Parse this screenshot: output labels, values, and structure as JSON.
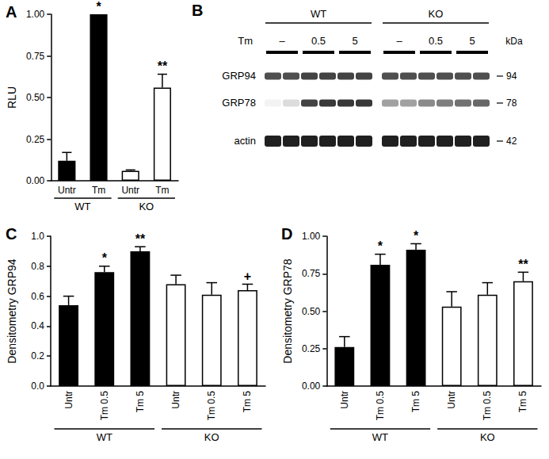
{
  "chart_data": [
    {
      "type": "bar",
      "title": "A",
      "categories": [
        "Untr",
        "Tm",
        "Untr",
        "Tm"
      ],
      "values": [
        0.12,
        1.0,
        0.06,
        0.56
      ],
      "errors": [
        0.05,
        null,
        0.005,
        0.08
      ],
      "colors": [
        "#000000",
        "#000000",
        "#ffffff",
        "#ffffff"
      ],
      "annotations": [
        null,
        "*",
        null,
        "**"
      ],
      "groups": [
        {
          "label": "WT",
          "size": 2
        },
        {
          "label": "KO",
          "size": 2
        }
      ],
      "y_label": "RLU",
      "ylim": [
        0,
        1
      ],
      "yticks": [
        {
          "value": 0,
          "label": "0.00"
        },
        0.25,
        {
          "value": 0.5,
          "label": "0.50"
        },
        0.75,
        {
          "value": 1,
          "label": "1.00"
        }
      ],
      "grid": false
    },
    {
      "type": "bar",
      "title": "C",
      "categories": [
        "Untr",
        "Tm 0.5",
        "Tm 5",
        "Untr",
        "Tm 0.5",
        "Tm 5"
      ],
      "values": [
        0.54,
        0.76,
        0.9,
        0.68,
        0.61,
        0.64
      ],
      "errors": [
        0.06,
        0.04,
        0.03,
        0.06,
        0.08,
        0.04
      ],
      "colors": [
        "#000000",
        "#000000",
        "#000000",
        "#ffffff",
        "#ffffff",
        "#ffffff"
      ],
      "annotations": [
        null,
        "*",
        "**",
        null,
        null,
        "+"
      ],
      "groups": [
        {
          "label": "WT",
          "size": 3
        },
        {
          "label": "KO",
          "size": 3
        }
      ],
      "y_label": "Densitometry GRP94",
      "ylim": [
        0,
        1
      ],
      "yticks": [
        {
          "value": 0,
          "label": "0.0"
        },
        0.2,
        0.4,
        0.6,
        0.8,
        {
          "value": 1,
          "label": "1.0"
        }
      ],
      "grid": false
    },
    {
      "type": "bar",
      "title": "D",
      "categories": [
        "Untr",
        "Tm 0.5",
        "Tm 5",
        "Untr",
        "Tm 0.5",
        "Tm 5"
      ],
      "values": [
        0.26,
        0.81,
        0.91,
        0.53,
        0.61,
        0.7
      ],
      "errors": [
        0.07,
        0.07,
        0.04,
        0.1,
        0.08,
        0.06
      ],
      "colors": [
        "#000000",
        "#000000",
        "#000000",
        "#ffffff",
        "#ffffff",
        "#ffffff"
      ],
      "annotations": [
        null,
        "*",
        "*",
        null,
        null,
        "**"
      ],
      "groups": [
        {
          "label": "WT",
          "size": 3
        },
        {
          "label": "KO",
          "size": 3
        }
      ],
      "y_label": "Densitometry GRP78",
      "ylim": [
        0,
        1
      ],
      "yticks": [
        {
          "value": 0,
          "label": "0.00"
        },
        0.25,
        {
          "value": 0.5,
          "label": "0.50"
        },
        0.75,
        {
          "value": 1,
          "label": "1.00"
        }
      ],
      "grid": false
    }
  ],
  "blot": {
    "title": "B",
    "groups": [
      {
        "label": "WT",
        "size": 6
      },
      {
        "label": "KO",
        "size": 6
      }
    ],
    "treatment": "Tm",
    "doses": [
      {
        "label": "–",
        "size": 2
      },
      {
        "label": "0.5",
        "size": 2
      },
      {
        "label": "5",
        "size": 2
      },
      {
        "label": "–",
        "size": 2
      },
      {
        "label": "0.5",
        "size": 2
      },
      {
        "label": "5",
        "size": 2
      }
    ],
    "marker_unit": "kDa",
    "rows": [
      {
        "name": "GRP94",
        "marker": 94,
        "intensities": [
          0.75,
          0.75,
          0.8,
          0.8,
          0.8,
          0.8,
          0.75,
          0.75,
          0.75,
          0.75,
          0.75,
          0.75
        ]
      },
      {
        "name": "GRP78",
        "marker": 78,
        "intensities": [
          0.05,
          0.15,
          0.8,
          0.85,
          0.85,
          0.85,
          0.4,
          0.4,
          0.5,
          0.55,
          0.6,
          0.65
        ]
      },
      {
        "name": "actin",
        "marker": 42,
        "intensities": [
          0.95,
          0.95,
          0.95,
          0.95,
          0.95,
          0.95,
          0.95,
          0.95,
          0.95,
          0.95,
          0.95,
          0.95
        ]
      }
    ]
  }
}
